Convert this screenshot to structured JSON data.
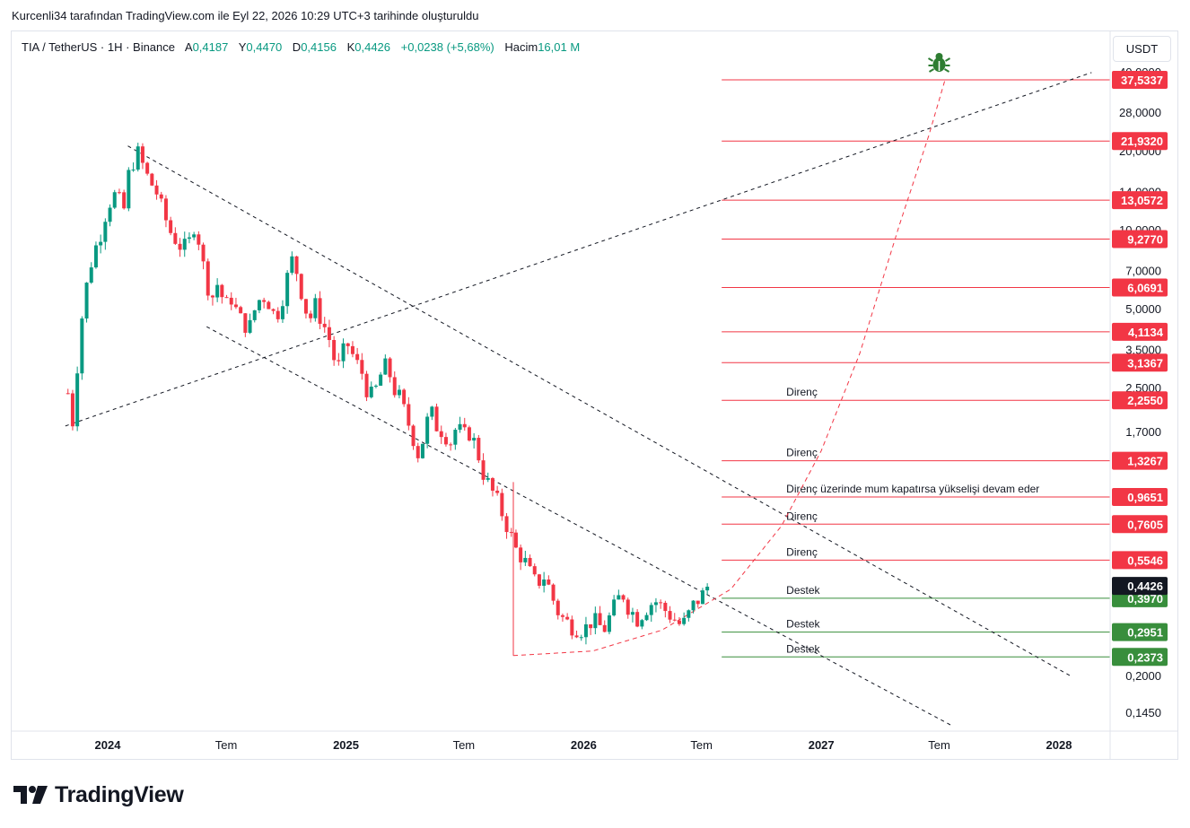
{
  "caption": "Kurcenli34 tarafından TradingView.com ile Eyl 22, 2026 10:29 UTC+3 tarihinde oluşturuldu",
  "legend": {
    "symbol": "TIA / TetherUS · 1H · Binance",
    "open_label": "A",
    "open": "0,4187",
    "high_label": "Y",
    "high": "0,4470",
    "low_label": "D",
    "low": "0,4156",
    "close_label": "K",
    "close": "0,4426",
    "change": "+0,0238 (+5,68%)",
    "volume_label": "Hacim",
    "volume": "16,01 M"
  },
  "currency_button": "USDT",
  "brand": "TradingView",
  "colors": {
    "up": "#089981",
    "down": "#f23645",
    "resistance": "#f23645",
    "support": "#388e3c",
    "last_price": "#131722",
    "bug_icon": "#2e7d32"
  },
  "chart_data": {
    "type": "candlestick",
    "y_scale": "log",
    "ylim": [
      0.13,
      45
    ],
    "x_range": [
      "2023-10",
      "2028-04"
    ],
    "x_ticks": [
      {
        "label": "2024",
        "date": "2024-01",
        "bold": true
      },
      {
        "label": "Tem",
        "date": "2024-07",
        "bold": false
      },
      {
        "label": "2025",
        "date": "2025-01",
        "bold": true
      },
      {
        "label": "Tem",
        "date": "2025-07",
        "bold": false
      },
      {
        "label": "2026",
        "date": "2026-01",
        "bold": true
      },
      {
        "label": "Tem",
        "date": "2026-07",
        "bold": false
      },
      {
        "label": "2027",
        "date": "2027-01",
        "bold": true
      },
      {
        "label": "Tem",
        "date": "2027-07",
        "bold": false
      },
      {
        "label": "2028",
        "date": "2028-01",
        "bold": true
      }
    ],
    "y_ticks": [
      "0,1450",
      "0,2000",
      "1,7000",
      "2,5000",
      "3,5000",
      "5,0000",
      "7,0000",
      "10,0000",
      "14,0000",
      "20,0000",
      "28,0000",
      "40,0000"
    ],
    "price_levels": [
      {
        "value": 37.5337,
        "label": "37,5337",
        "kind": "resistance"
      },
      {
        "value": 21.932,
        "label": "21,9320",
        "kind": "resistance"
      },
      {
        "value": 13.0572,
        "label": "13,0572",
        "kind": "resistance"
      },
      {
        "value": 9.277,
        "label": "9,2770",
        "kind": "resistance"
      },
      {
        "value": 6.0691,
        "label": "6,0691",
        "kind": "resistance"
      },
      {
        "value": 4.1134,
        "label": "4,1134",
        "kind": "resistance"
      },
      {
        "value": 3.1367,
        "label": "3,1367",
        "kind": "resistance"
      },
      {
        "value": 2.255,
        "label": "2,2550",
        "kind": "resistance",
        "note": "Direnç"
      },
      {
        "value": 1.3267,
        "label": "1,3267",
        "kind": "resistance",
        "note": "Direnç"
      },
      {
        "value": 0.9651,
        "label": "0,9651",
        "kind": "resistance",
        "note": "Direnç üzerinde mum kapatırsa yükselişi devam eder"
      },
      {
        "value": 0.7605,
        "label": "0,7605",
        "kind": "resistance",
        "note": "Direnç"
      },
      {
        "value": 0.5546,
        "label": "0,5546",
        "kind": "resistance",
        "note": "Direnç"
      },
      {
        "value": 0.397,
        "label": "0,3970",
        "kind": "support",
        "note": "Destek"
      },
      {
        "value": 0.2951,
        "label": "0,2951",
        "kind": "support",
        "note": "Destek"
      },
      {
        "value": 0.2373,
        "label": "0,2373",
        "kind": "support",
        "note": "Destek"
      }
    ],
    "last_price": {
      "value": 0.4426,
      "label": "0,4426"
    },
    "close_path": [
      [
        "2023-11-01",
        2.4
      ],
      [
        "2023-11-08",
        1.85
      ],
      [
        "2023-11-15",
        3.0
      ],
      [
        "2023-11-22",
        4.6
      ],
      [
        "2023-12-01",
        6.5
      ],
      [
        "2023-12-10",
        8.2
      ],
      [
        "2023-12-20",
        9.5
      ],
      [
        "2024-01-01",
        12.5
      ],
      [
        "2024-01-15",
        14.0
      ],
      [
        "2024-01-25",
        11.5
      ],
      [
        "2024-02-01",
        16.0
      ],
      [
        "2024-02-10",
        18.5
      ],
      [
        "2024-02-18",
        20.0
      ],
      [
        "2024-02-26",
        17.0
      ],
      [
        "2024-03-05",
        15.5
      ],
      [
        "2024-03-15",
        14.2
      ],
      [
        "2024-03-25",
        12.0
      ],
      [
        "2024-04-05",
        10.0
      ],
      [
        "2024-04-15",
        9.2
      ],
      [
        "2024-04-25",
        8.5
      ],
      [
        "2024-05-05",
        9.0
      ],
      [
        "2024-05-15",
        11.0
      ],
      [
        "2024-05-22",
        8.5
      ],
      [
        "2024-06-01",
        6.3
      ],
      [
        "2024-06-10",
        5.6
      ],
      [
        "2024-06-20",
        6.5
      ],
      [
        "2024-06-28",
        5.0
      ],
      [
        "2024-07-08",
        5.6
      ],
      [
        "2024-07-20",
        4.7
      ],
      [
        "2024-08-05",
        4.2
      ],
      [
        "2024-08-15",
        5.1
      ],
      [
        "2024-08-25",
        5.7
      ],
      [
        "2024-09-05",
        5.3
      ],
      [
        "2024-09-15",
        4.6
      ],
      [
        "2024-09-25",
        5.5
      ],
      [
        "2024-10-05",
        7.0
      ],
      [
        "2024-10-12",
        8.0
      ],
      [
        "2024-10-20",
        6.5
      ],
      [
        "2024-10-28",
        5.4
      ],
      [
        "2024-11-05",
        4.5
      ],
      [
        "2024-11-15",
        5.2
      ],
      [
        "2024-11-25",
        4.5
      ],
      [
        "2024-12-05",
        4.0
      ],
      [
        "2024-12-12",
        3.3
      ],
      [
        "2024-12-22",
        3.0
      ],
      [
        "2025-01-01",
        3.8
      ],
      [
        "2025-01-10",
        3.4
      ],
      [
        "2025-01-18",
        3.1
      ],
      [
        "2025-01-28",
        2.8
      ],
      [
        "2025-02-05",
        2.3
      ],
      [
        "2025-02-15",
        2.45
      ],
      [
        "2025-02-25",
        2.9
      ],
      [
        "2025-03-05",
        3.1
      ],
      [
        "2025-03-15",
        2.5
      ],
      [
        "2025-03-25",
        2.3
      ],
      [
        "2025-04-05",
        1.9
      ],
      [
        "2025-04-15",
        1.6
      ],
      [
        "2025-04-22",
        1.4
      ],
      [
        "2025-05-01",
        1.65
      ],
      [
        "2025-05-10",
        2.1
      ],
      [
        "2025-05-20",
        1.8
      ],
      [
        "2025-06-01",
        1.7
      ],
      [
        "2025-06-10",
        1.55
      ],
      [
        "2025-06-20",
        1.8
      ],
      [
        "2025-06-30",
        1.65
      ],
      [
        "2025-07-10",
        1.7
      ],
      [
        "2025-07-20",
        1.5
      ],
      [
        "2025-07-30",
        1.2
      ],
      [
        "2025-08-10",
        1.05
      ],
      [
        "2025-08-20",
        0.95
      ],
      [
        "2025-08-30",
        0.82
      ],
      [
        "2025-09-10",
        0.7
      ],
      [
        "2025-09-20",
        0.6
      ],
      [
        "2025-10-01",
        0.56
      ],
      [
        "2025-10-10",
        0.5
      ],
      [
        "2025-10-20",
        0.45
      ],
      [
        "2025-11-01",
        0.48
      ],
      [
        "2025-11-10",
        0.43
      ],
      [
        "2025-11-20",
        0.36
      ],
      [
        "2025-12-01",
        0.33
      ],
      [
        "2025-12-15",
        0.31
      ],
      [
        "2026-01-01",
        0.3
      ],
      [
        "2026-01-15",
        0.33
      ],
      [
        "2026-02-01",
        0.3
      ],
      [
        "2026-02-15",
        0.36
      ],
      [
        "2026-03-01",
        0.42
      ],
      [
        "2026-03-10",
        0.37
      ],
      [
        "2026-03-25",
        0.33
      ],
      [
        "2026-04-05",
        0.36
      ],
      [
        "2026-04-20",
        0.39
      ],
      [
        "2026-05-05",
        0.36
      ],
      [
        "2026-05-20",
        0.33
      ],
      [
        "2026-06-01",
        0.31
      ],
      [
        "2026-06-10",
        0.34
      ],
      [
        "2026-06-20",
        0.38
      ],
      [
        "2026-06-30",
        0.4
      ],
      [
        "2026-07-10",
        0.44
      ]
    ],
    "annotations": {
      "bug_icon": "bug-icon"
    }
  }
}
